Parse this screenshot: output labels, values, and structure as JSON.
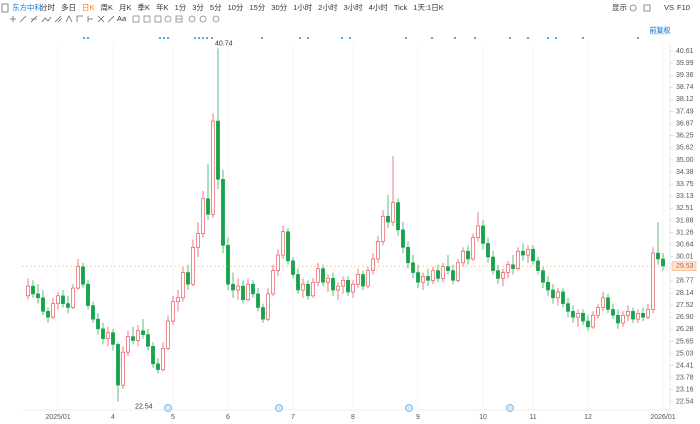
{
  "toolbar": {
    "stock": "东方中科",
    "periods": [
      "分时",
      "多日",
      "日K",
      "周K",
      "月K",
      "季K",
      "年K",
      "1分",
      "3分",
      "5分",
      "10分",
      "15分",
      "30分",
      "1小时",
      "2小时",
      "3小时",
      "4小时",
      "Tick",
      "1天:1日K"
    ],
    "active_period": 2,
    "display": "显示",
    "compare": "VS",
    "f10": "F10",
    "text_tool": "Aa",
    "adjust": "前复权"
  },
  "chart_data": {
    "type": "candlestick",
    "candles": [
      [
        28.0,
        28.9,
        27.8,
        28.5
      ],
      [
        28.5,
        28.8,
        27.9,
        28.1
      ],
      [
        28.1,
        28.6,
        27.6,
        27.9
      ],
      [
        27.9,
        28.3,
        27.0,
        27.2
      ],
      [
        27.2,
        27.4,
        26.6,
        26.9
      ],
      [
        26.9,
        27.9,
        26.8,
        27.6
      ],
      [
        27.6,
        28.2,
        27.3,
        28.0
      ],
      [
        28.0,
        28.3,
        27.4,
        27.6
      ],
      [
        27.6,
        28.0,
        27.1,
        27.4
      ],
      [
        27.4,
        28.6,
        27.3,
        28.4
      ],
      [
        28.4,
        29.9,
        28.3,
        29.5
      ],
      [
        29.5,
        29.7,
        28.4,
        28.6
      ],
      [
        28.6,
        28.8,
        27.3,
        27.5
      ],
      [
        27.5,
        27.7,
        26.6,
        26.8
      ],
      [
        26.8,
        27.1,
        26.0,
        26.3
      ],
      [
        26.3,
        26.6,
        25.5,
        25.8
      ],
      [
        25.8,
        26.4,
        25.4,
        26.1
      ],
      [
        26.1,
        26.3,
        25.2,
        25.5
      ],
      [
        25.5,
        25.6,
        22.54,
        23.4
      ],
      [
        23.4,
        25.4,
        23.2,
        25.1
      ],
      [
        25.1,
        26.2,
        24.9,
        25.9
      ],
      [
        25.9,
        26.4,
        25.5,
        25.7
      ],
      [
        25.7,
        26.5,
        25.4,
        26.2
      ],
      [
        26.2,
        26.8,
        25.8,
        26.0
      ],
      [
        26.0,
        26.3,
        25.2,
        25.4
      ],
      [
        25.4,
        25.6,
        24.3,
        24.5
      ],
      [
        24.5,
        24.8,
        24.0,
        24.2
      ],
      [
        24.2,
        25.6,
        24.1,
        25.3
      ],
      [
        25.3,
        27.0,
        25.2,
        26.7
      ],
      [
        26.7,
        28.0,
        26.5,
        27.7
      ],
      [
        27.7,
        28.3,
        27.2,
        27.9
      ],
      [
        27.9,
        29.5,
        27.7,
        29.2
      ],
      [
        29.2,
        29.6,
        28.3,
        28.6
      ],
      [
        28.6,
        30.9,
        28.5,
        30.5
      ],
      [
        30.5,
        31.8,
        30.0,
        31.2
      ],
      [
        31.2,
        33.4,
        31.0,
        33.0
      ],
      [
        33.0,
        34.8,
        31.9,
        32.2
      ],
      [
        32.2,
        37.4,
        32.0,
        37.0
      ],
      [
        37.0,
        40.74,
        33.5,
        34.0
      ],
      [
        34.0,
        34.5,
        30.2,
        30.6
      ],
      [
        30.6,
        31.0,
        28.3,
        28.6
      ],
      [
        28.6,
        29.2,
        27.9,
        28.3
      ],
      [
        28.3,
        28.9,
        27.8,
        28.5
      ],
      [
        28.5,
        28.8,
        27.6,
        27.8
      ],
      [
        27.8,
        28.9,
        27.7,
        28.6
      ],
      [
        28.6,
        28.8,
        27.9,
        28.1
      ],
      [
        28.1,
        28.4,
        27.2,
        27.4
      ],
      [
        27.4,
        27.6,
        26.6,
        26.8
      ],
      [
        26.8,
        28.4,
        26.7,
        28.1
      ],
      [
        28.1,
        29.6,
        28.0,
        29.3
      ],
      [
        29.3,
        30.4,
        29.0,
        30.1
      ],
      [
        30.1,
        31.6,
        29.9,
        31.3
      ],
      [
        31.3,
        31.5,
        29.6,
        29.8
      ],
      [
        29.8,
        30.0,
        28.9,
        29.1
      ],
      [
        29.1,
        29.4,
        28.1,
        28.3
      ],
      [
        28.3,
        28.9,
        27.9,
        28.6
      ],
      [
        28.6,
        28.8,
        27.8,
        28.0
      ],
      [
        28.0,
        28.9,
        27.9,
        28.7
      ],
      [
        28.7,
        29.7,
        28.5,
        29.4
      ],
      [
        29.4,
        29.6,
        28.5,
        28.7
      ],
      [
        28.7,
        29.1,
        28.2,
        28.9
      ],
      [
        28.9,
        29.2,
        28.0,
        28.3
      ],
      [
        28.3,
        28.7,
        27.8,
        28.5
      ],
      [
        28.5,
        29.0,
        28.1,
        28.8
      ],
      [
        28.8,
        29.0,
        28.0,
        28.2
      ],
      [
        28.2,
        28.8,
        27.9,
        28.6
      ],
      [
        28.6,
        29.4,
        28.4,
        29.1
      ],
      [
        29.1,
        29.3,
        28.3,
        28.5
      ],
      [
        28.5,
        29.5,
        28.4,
        29.3
      ],
      [
        29.3,
        30.2,
        29.1,
        29.9
      ],
      [
        29.9,
        31.1,
        29.7,
        30.8
      ],
      [
        30.8,
        32.4,
        30.6,
        32.1
      ],
      [
        32.1,
        33.2,
        31.5,
        31.8
      ],
      [
        31.8,
        35.2,
        31.6,
        32.8
      ],
      [
        32.8,
        33.0,
        31.1,
        31.4
      ],
      [
        31.4,
        31.8,
        30.2,
        30.5
      ],
      [
        30.5,
        30.8,
        29.4,
        29.7
      ],
      [
        29.7,
        30.1,
        28.9,
        29.2
      ],
      [
        29.2,
        29.6,
        28.4,
        28.7
      ],
      [
        28.7,
        29.2,
        28.3,
        29.0
      ],
      [
        29.0,
        29.4,
        28.5,
        28.8
      ],
      [
        28.8,
        29.5,
        28.6,
        29.3
      ],
      [
        29.3,
        29.6,
        28.7,
        28.9
      ],
      [
        28.9,
        29.7,
        28.7,
        29.5
      ],
      [
        29.5,
        30.1,
        29.1,
        29.3
      ],
      [
        29.3,
        29.6,
        28.6,
        28.8
      ],
      [
        28.8,
        29.9,
        28.7,
        29.7
      ],
      [
        29.7,
        30.5,
        29.5,
        30.3
      ],
      [
        30.3,
        30.6,
        29.6,
        29.9
      ],
      [
        29.9,
        31.2,
        29.8,
        31.0
      ],
      [
        31.0,
        32.3,
        30.8,
        31.6
      ],
      [
        31.6,
        31.9,
        30.4,
        30.7
      ],
      [
        30.7,
        31.0,
        29.7,
        30.0
      ],
      [
        30.0,
        30.3,
        29.1,
        29.3
      ],
      [
        29.3,
        29.6,
        28.6,
        28.9
      ],
      [
        28.9,
        29.4,
        28.5,
        29.2
      ],
      [
        29.2,
        29.8,
        28.9,
        29.6
      ],
      [
        29.6,
        30.1,
        29.1,
        29.4
      ],
      [
        29.4,
        30.5,
        29.3,
        30.3
      ],
      [
        30.3,
        30.7,
        29.8,
        30.1
      ],
      [
        30.1,
        30.6,
        29.7,
        30.4
      ],
      [
        30.4,
        30.6,
        29.6,
        29.8
      ],
      [
        29.8,
        30.0,
        29.1,
        29.3
      ],
      [
        29.3,
        29.5,
        28.4,
        28.7
      ],
      [
        28.7,
        29.0,
        28.0,
        28.3
      ],
      [
        28.3,
        28.6,
        27.6,
        27.9
      ],
      [
        27.9,
        28.4,
        27.5,
        28.2
      ],
      [
        28.2,
        28.4,
        27.4,
        27.6
      ],
      [
        27.6,
        27.9,
        26.9,
        27.2
      ],
      [
        27.2,
        27.5,
        26.6,
        26.9
      ],
      [
        26.9,
        27.3,
        26.4,
        27.1
      ],
      [
        27.1,
        27.3,
        26.5,
        26.7
      ],
      [
        26.7,
        27.0,
        26.2,
        26.4
      ],
      [
        26.4,
        27.2,
        26.3,
        27.0
      ],
      [
        27.0,
        27.6,
        26.8,
        27.4
      ],
      [
        27.4,
        28.2,
        27.2,
        27.9
      ],
      [
        27.9,
        28.1,
        27.1,
        27.3
      ],
      [
        27.3,
        27.6,
        26.8,
        27.0
      ],
      [
        27.0,
        27.3,
        26.3,
        26.6
      ],
      [
        26.6,
        27.2,
        26.4,
        27.0
      ],
      [
        27.0,
        27.5,
        26.7,
        27.2
      ],
      [
        27.2,
        27.4,
        26.6,
        26.8
      ],
      [
        26.8,
        27.3,
        26.6,
        27.1
      ],
      [
        27.1,
        27.4,
        26.7,
        26.9
      ],
      [
        26.9,
        27.6,
        26.8,
        27.3
      ],
      [
        27.3,
        30.5,
        27.1,
        30.2
      ],
      [
        30.2,
        31.8,
        29.6,
        29.9
      ],
      [
        29.9,
        30.2,
        29.3,
        29.53
      ]
    ],
    "up_color": "#e8414c",
    "down_color": "#17a34a",
    "last_price": 29.53,
    "last_color": "#f5a25d",
    "high_marker": 40.74,
    "low_marker": 22.54,
    "ylim": [
      22.12,
      40.97
    ],
    "yticks": [
      40.61,
      39.99,
      39.36,
      38.74,
      38.12,
      37.49,
      36.87,
      36.25,
      35.62,
      {
        "value": 35,
        "label": "35.00"
      },
      34.38,
      33.75,
      33.13,
      32.51,
      31.88,
      31.26,
      30.64,
      30.01,
      28.77,
      28.14,
      27.52,
      {
        "value": 26.9,
        "label": "26.90"
      },
      26.28,
      25.65,
      25.03,
      24.41,
      23.78,
      23.16,
      22.54
    ],
    "xticks": [
      {
        "value": 6,
        "label": "2025/01"
      },
      {
        "value": 17,
        "label": "4"
      },
      {
        "value": 29,
        "label": "5"
      },
      {
        "value": 40,
        "label": "6"
      },
      {
        "value": 53,
        "label": "7"
      },
      {
        "value": 65,
        "label": "8"
      },
      {
        "value": 78,
        "label": "9"
      },
      {
        "value": 91,
        "label": "10"
      },
      {
        "value": 101,
        "label": "11"
      },
      {
        "value": 112,
        "label": "12"
      },
      {
        "value": 127,
        "label": "2026/01"
      }
    ],
    "grid": "x"
  }
}
